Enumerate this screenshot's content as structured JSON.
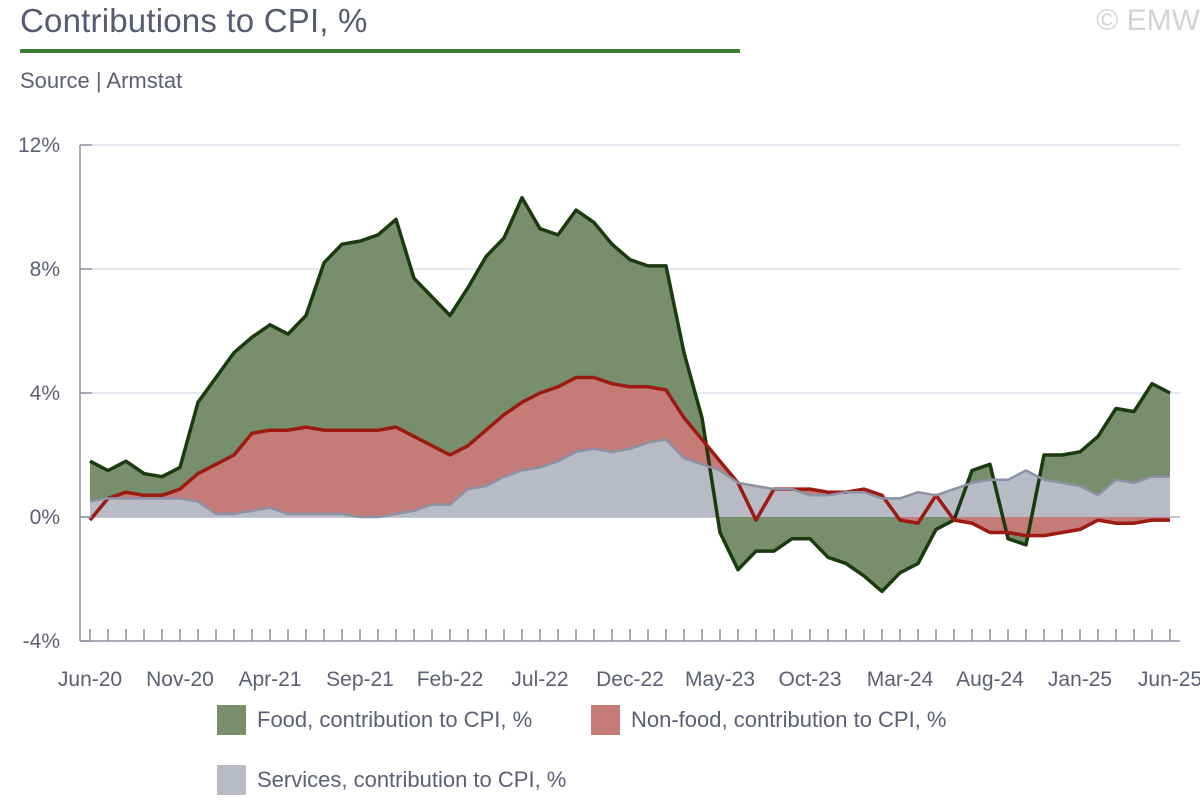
{
  "header": {
    "title": "Contributions to CPI, %",
    "subtitle": "Source | Armstat",
    "watermark": "© EMW"
  },
  "colors": {
    "food_fill": "#778f6c",
    "food_line": "#1b3a10",
    "nonfood_fill": "#c57b77",
    "nonfood_line": "#9b1a12",
    "services_fill": "#b8bac6",
    "services_line": "#8e90a3",
    "grid": "#d9e0ec",
    "axis": "#8d90a0"
  },
  "chart_data": {
    "type": "area",
    "x_tick_labels": [
      "Jun-20",
      "Nov-20",
      "Apr-21",
      "Sep-21",
      "Feb-22",
      "Jul-22",
      "Dec-22",
      "May-23",
      "Oct-23",
      "Mar-24",
      "Aug-24",
      "Jan-25",
      "Jun-25"
    ],
    "x_tick_every_months": 5,
    "x_start": "Jun-20",
    "x_end": "Jun-25",
    "y_ticks": [
      "-4%",
      "0%",
      "4%",
      "8%",
      "12%"
    ],
    "ylim": [
      -4,
      12
    ],
    "grid": "horizontal",
    "legend_position": "bottom",
    "series": [
      {
        "name": "Food, contribution to CPI, %",
        "values": [
          1.8,
          1.5,
          1.8,
          1.4,
          1.3,
          1.6,
          3.7,
          4.5,
          5.3,
          5.8,
          6.2,
          5.9,
          6.5,
          8.2,
          8.8,
          8.9,
          9.1,
          9.6,
          7.7,
          7.1,
          6.5,
          7.4,
          8.4,
          9.0,
          10.3,
          9.3,
          9.1,
          9.9,
          9.5,
          8.8,
          8.3,
          8.1,
          8.1,
          5.3,
          3.2,
          -0.5,
          -1.7,
          -1.1,
          -1.1,
          -0.7,
          -0.7,
          -1.3,
          -1.5,
          -1.9,
          -2.4,
          -1.8,
          -1.5,
          -0.4,
          -0.1,
          1.5,
          1.7,
          -0.7,
          -0.9,
          2.0,
          2.0,
          2.1,
          2.6,
          3.5,
          3.4,
          4.3,
          4.0
        ],
        "fill_color": "#778f6c",
        "line_color": "#1b3a10"
      },
      {
        "name": "Non-food, contribution to CPI, %",
        "values": [
          -0.1,
          0.6,
          0.8,
          0.7,
          0.7,
          0.9,
          1.4,
          1.7,
          2.0,
          2.7,
          2.8,
          2.8,
          2.9,
          2.8,
          2.8,
          2.8,
          2.8,
          2.9,
          2.6,
          2.3,
          2.0,
          2.3,
          2.8,
          3.3,
          3.7,
          4.0,
          4.2,
          4.5,
          4.5,
          4.3,
          4.2,
          4.2,
          4.1,
          3.2,
          2.5,
          1.8,
          1.1,
          -0.1,
          0.9,
          0.9,
          0.9,
          0.8,
          0.8,
          0.9,
          0.7,
          -0.1,
          -0.2,
          0.7,
          -0.1,
          -0.2,
          -0.5,
          -0.5,
          -0.6,
          -0.6,
          -0.5,
          -0.4,
          -0.1,
          -0.2,
          -0.2,
          -0.1,
          -0.1
        ],
        "fill_color": "#c57b77",
        "line_color": "#9b1a12"
      },
      {
        "name": "Services, contribution to CPI, %",
        "values": [
          0.5,
          0.6,
          0.6,
          0.6,
          0.6,
          0.6,
          0.5,
          0.1,
          0.1,
          0.2,
          0.3,
          0.1,
          0.1,
          0.1,
          0.1,
          0.0,
          0.0,
          0.1,
          0.2,
          0.4,
          0.4,
          0.9,
          1.0,
          1.3,
          1.5,
          1.6,
          1.8,
          2.1,
          2.2,
          2.1,
          2.2,
          2.4,
          2.5,
          1.9,
          1.7,
          1.5,
          1.1,
          1.0,
          0.9,
          0.9,
          0.7,
          0.7,
          0.8,
          0.8,
          0.6,
          0.6,
          0.8,
          0.7,
          0.9,
          1.1,
          1.2,
          1.2,
          1.5,
          1.2,
          1.1,
          1.0,
          0.7,
          1.2,
          1.1,
          1.3,
          1.3
        ],
        "fill_color": "#b8bac6",
        "line_color": "#8e90a3"
      }
    ]
  }
}
